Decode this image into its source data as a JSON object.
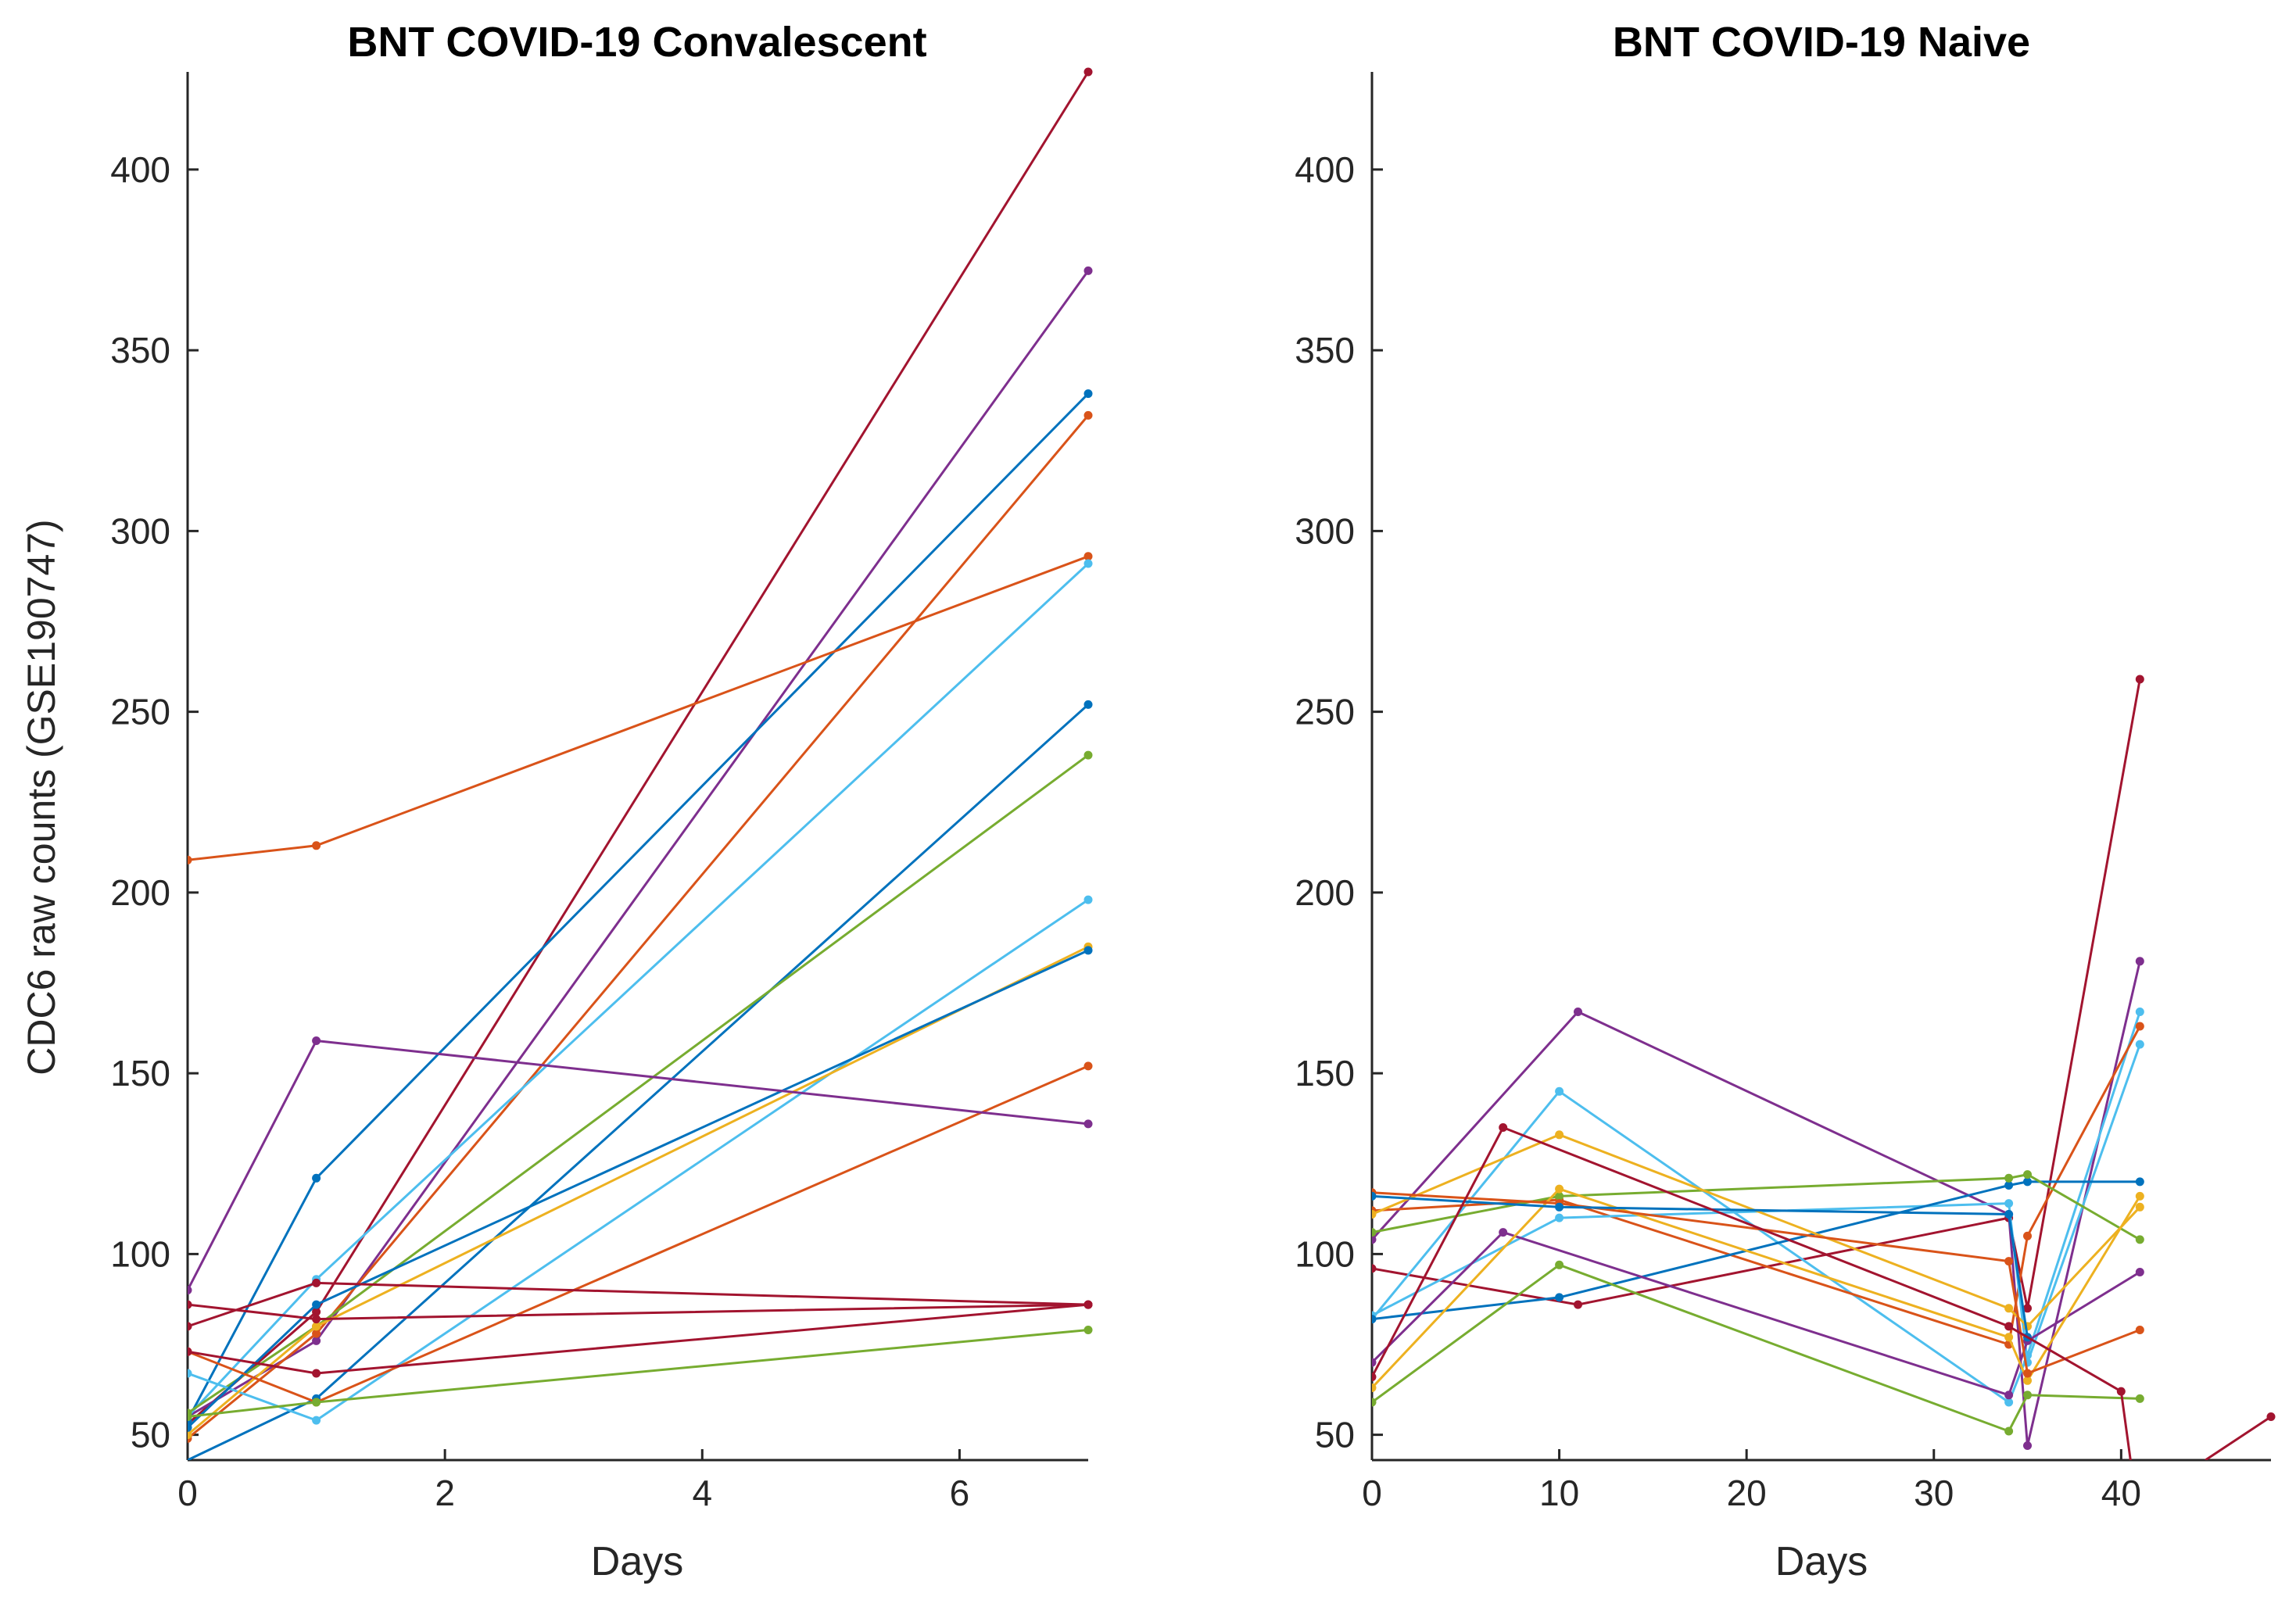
{
  "chart_data": [
    {
      "type": "line",
      "title": "BNT COVID-19 Convalescent",
      "xlabel": "Days",
      "ylabel": "CDC6 raw counts (GSE190747)",
      "xlim": [
        0,
        7
      ],
      "ylim": [
        43,
        427
      ],
      "xticks": [
        0,
        2,
        4,
        6
      ],
      "yticks": [
        50,
        100,
        150,
        200,
        250,
        300,
        350,
        400
      ],
      "grid": false,
      "series": [
        {
          "name": "s1",
          "color": "#A2142F",
          "x": [
            0,
            1,
            7
          ],
          "y": [
            53,
            84,
            427
          ]
        },
        {
          "name": "s2",
          "color": "#7E2F8E",
          "x": [
            0,
            1,
            7
          ],
          "y": [
            55,
            76,
            372
          ]
        },
        {
          "name": "s3",
          "color": "#0072BD",
          "x": [
            0,
            1,
            7
          ],
          "y": [
            54,
            121,
            338
          ]
        },
        {
          "name": "s4",
          "color": "#D95319",
          "x": [
            0,
            1,
            7
          ],
          "y": [
            49,
            78,
            332
          ]
        },
        {
          "name": "s5",
          "color": "#D95319",
          "x": [
            0,
            1,
            7
          ],
          "y": [
            209,
            213,
            293
          ]
        },
        {
          "name": "s6",
          "color": "#4DBEEE",
          "x": [
            0,
            1,
            7
          ],
          "y": [
            55,
            93,
            291
          ]
        },
        {
          "name": "s7",
          "color": "#0072BD",
          "x": [
            0,
            1,
            7
          ],
          "y": [
            43,
            60,
            252
          ]
        },
        {
          "name": "s8",
          "color": "#77AC30",
          "x": [
            0,
            1,
            7
          ],
          "y": [
            56,
            80,
            238
          ]
        },
        {
          "name": "s9",
          "color": "#4DBEEE",
          "x": [
            0,
            1,
            7
          ],
          "y": [
            67,
            54,
            198
          ]
        },
        {
          "name": "s10",
          "color": "#EDB120",
          "x": [
            0,
            1,
            7
          ],
          "y": [
            50,
            80,
            185
          ]
        },
        {
          "name": "s11",
          "color": "#0072BD",
          "x": [
            0,
            1,
            7
          ],
          "y": [
            52,
            86,
            184
          ]
        },
        {
          "name": "s12",
          "color": "#D95319",
          "x": [
            0,
            1,
            7
          ],
          "y": [
            73,
            59,
            152
          ]
        },
        {
          "name": "s13",
          "color": "#7E2F8E",
          "x": [
            0,
            1,
            7
          ],
          "y": [
            90,
            159,
            136
          ]
        },
        {
          "name": "s14",
          "color": "#A2142F",
          "x": [
            0,
            1,
            7
          ],
          "y": [
            86,
            82,
            86
          ]
        },
        {
          "name": "s15",
          "color": "#77AC30",
          "x": [
            0,
            1,
            7
          ],
          "y": [
            55,
            59,
            79
          ]
        },
        {
          "name": "s16",
          "color": "#A2142F",
          "x": [
            0,
            1,
            7
          ],
          "y": [
            80,
            92,
            86
          ]
        },
        {
          "name": "s17",
          "color": "#A2142F",
          "x": [
            0,
            1,
            7
          ],
          "y": [
            73,
            67,
            86
          ]
        }
      ]
    },
    {
      "type": "line",
      "title": "BNT COVID-19 Naive",
      "xlabel": "Days",
      "ylabel": "",
      "xlim": [
        0,
        48
      ],
      "ylim": [
        43,
        427
      ],
      "xticks": [
        0,
        10,
        20,
        30,
        40
      ],
      "yticks": [
        50,
        100,
        150,
        200,
        250,
        300,
        350,
        400
      ],
      "grid": false,
      "series": [
        {
          "name": "n1",
          "color": "#A2142F",
          "x": [
            0,
            11,
            34,
            35,
            41
          ],
          "y": [
            96,
            86,
            110,
            85,
            259
          ]
        },
        {
          "name": "n2",
          "color": "#7E2F8E",
          "x": [
            0,
            11,
            34,
            35,
            41
          ],
          "y": [
            104,
            167,
            111,
            47,
            181
          ]
        },
        {
          "name": "n3",
          "color": "#4DBEEE",
          "x": [
            0,
            10,
            34,
            35,
            41
          ],
          "y": [
            82,
            145,
            59,
            72,
            167
          ]
        },
        {
          "name": "n4",
          "color": "#D95319",
          "x": [
            0,
            10,
            34,
            35,
            41
          ],
          "y": [
            112,
            115,
            75,
            105,
            163
          ]
        },
        {
          "name": "n5",
          "color": "#4DBEEE",
          "x": [
            0,
            10,
            34,
            35,
            41
          ],
          "y": [
            83,
            110,
            114,
            70,
            158
          ]
        },
        {
          "name": "n6",
          "color": "#0072BD",
          "x": [
            0,
            10,
            34,
            35,
            41
          ],
          "y": [
            82,
            88,
            119,
            120,
            120
          ]
        },
        {
          "name": "n7",
          "color": "#77AC30",
          "x": [
            0,
            10,
            34,
            35,
            41
          ],
          "y": [
            106,
            116,
            121,
            122,
            104
          ]
        },
        {
          "name": "n8",
          "color": "#EDB120",
          "x": [
            0,
            10,
            34,
            35,
            41
          ],
          "y": [
            111,
            133,
            85,
            80,
            113
          ]
        },
        {
          "name": "n9",
          "color": "#77AC30",
          "x": [
            0,
            10,
            34,
            35,
            41
          ],
          "y": [
            59,
            97,
            51,
            61,
            60
          ]
        },
        {
          "name": "n10",
          "color": "#7E2F8E",
          "x": [
            0,
            7,
            34,
            35,
            41
          ],
          "y": [
            70,
            106,
            61,
            76,
            95
          ]
        },
        {
          "name": "n11",
          "color": "#EDB120",
          "x": [
            0,
            10,
            34,
            35,
            41
          ],
          "y": [
            63,
            118,
            77,
            65,
            116
          ]
        },
        {
          "name": "n12",
          "color": "#D95319",
          "x": [
            0,
            10,
            34,
            35,
            41
          ],
          "y": [
            117,
            114,
            98,
            67,
            79
          ]
        },
        {
          "name": "n13",
          "color": "#0072BD",
          "x": [
            0,
            10,
            34,
            35
          ],
          "y": [
            116,
            113,
            111,
            77
          ]
        },
        {
          "name": "n14",
          "color": "#A2142F",
          "x": [
            0,
            7,
            34,
            40,
            40.5
          ],
          "y": [
            66,
            135,
            80,
            62,
            43
          ]
        },
        {
          "name": "n15",
          "color": "#A2142F",
          "x": [
            44.5,
            48
          ],
          "y": [
            43,
            55
          ]
        }
      ]
    }
  ]
}
